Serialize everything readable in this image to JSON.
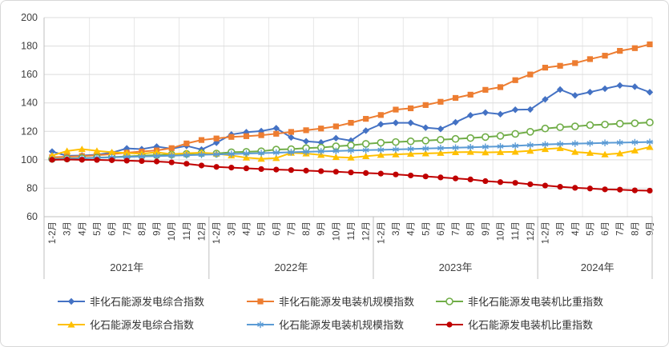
{
  "chart_data": {
    "type": "line",
    "categories": [
      "1-2月",
      "3月",
      "4月",
      "5月",
      "6月",
      "7月",
      "8月",
      "9月",
      "10月",
      "11月",
      "12月",
      "1-2月",
      "3月",
      "4月",
      "5月",
      "6月",
      "7月",
      "8月",
      "9月",
      "10月",
      "11月",
      "12月",
      "1-2月",
      "3月",
      "4月",
      "5月",
      "6月",
      "7月",
      "8月",
      "9月",
      "10月",
      "11月",
      "12月",
      "1-2月",
      "3月",
      "4月",
      "5月",
      "6月",
      "7月",
      "8月",
      "9月"
    ],
    "year_groups": [
      {
        "label": "2021年",
        "span": 11
      },
      {
        "label": "2022年",
        "span": 11
      },
      {
        "label": "2023年",
        "span": 11
      },
      {
        "label": "2024年",
        "span": 8
      }
    ],
    "y_axis": {
      "min": 60,
      "max": 200,
      "step": 20,
      "ticks": [
        60,
        80,
        100,
        120,
        140,
        160,
        180,
        200
      ]
    },
    "grid": true,
    "legend_position": "bottom",
    "series": [
      {
        "name": "非化石能源发电综合指数",
        "color": "#4472C4",
        "marker": "diamond",
        "values": [
          105.8,
          102.8,
          103.0,
          103.6,
          105.0,
          108.0,
          107.5,
          109.3,
          107.8,
          109.8,
          107.2,
          112.0,
          117.8,
          119.4,
          120.2,
          122.2,
          115.7,
          113.0,
          112.2,
          115.2,
          113.5,
          120.5,
          125.0,
          126.0,
          126.0,
          122.6,
          121.7,
          126.4,
          131.3,
          133.2,
          132.1,
          135.2,
          135.4,
          142.5,
          149.4,
          145.3,
          147.6,
          150.0,
          152.3,
          151.4,
          147.5
        ]
      },
      {
        "name": "非化石能源发电装机规模指数",
        "color": "#ED7D31",
        "marker": "square",
        "values": [
          101.8,
          102.2,
          102.6,
          103.2,
          104.0,
          105.0,
          105.8,
          106.6,
          108.2,
          111.5,
          113.9,
          115.0,
          116.1,
          116.6,
          117.3,
          118.3,
          119.6,
          120.8,
          122.0,
          123.5,
          126.0,
          128.8,
          131.5,
          135.3,
          136.2,
          138.5,
          140.8,
          143.5,
          145.8,
          149.2,
          151.1,
          156.0,
          160.0,
          164.8,
          166.1,
          168.0,
          170.8,
          173.2,
          176.6,
          178.5,
          181.2
        ]
      },
      {
        "name": "非化石能源发电装机比重指数",
        "color": "#70AD47",
        "marker": "circle-open",
        "values": [
          100.6,
          100.9,
          101.2,
          101.5,
          101.9,
          102.4,
          102.9,
          103.3,
          103.7,
          104.2,
          104.7,
          104.4,
          105.3,
          105.6,
          106.0,
          107.2,
          107.5,
          108.2,
          108.6,
          109.5,
          110.2,
          111.2,
          112.0,
          112.5,
          113.0,
          113.5,
          114.1,
          114.7,
          115.3,
          116.0,
          116.8,
          118.2,
          119.7,
          122.0,
          122.9,
          123.5,
          124.4,
          124.8,
          125.4,
          125.7,
          126.3
        ]
      },
      {
        "name": "化石能源发电综合指数",
        "color": "#FFC000",
        "marker": "triangle",
        "values": [
          103.0,
          106.2,
          107.5,
          106.3,
          105.3,
          104.8,
          104.3,
          105.3,
          104.0,
          104.6,
          105.0,
          104.3,
          103.0,
          101.5,
          100.7,
          101.2,
          104.9,
          104.4,
          103.4,
          101.9,
          101.5,
          102.5,
          103.4,
          103.8,
          104.2,
          104.5,
          104.8,
          105.3,
          105.5,
          105.2,
          105.4,
          105.6,
          106.3,
          107.5,
          108.2,
          105.5,
          104.8,
          103.8,
          104.5,
          106.5,
          109.0
        ]
      },
      {
        "name": "化石能源发电装机规模指数",
        "color": "#5B9BD5",
        "marker": "asterisk",
        "values": [
          100.4,
          100.7,
          101.0,
          101.4,
          101.7,
          102.0,
          102.3,
          102.6,
          102.9,
          103.2,
          103.5,
          103.8,
          104.1,
          104.4,
          104.7,
          105.0,
          105.3,
          105.6,
          105.9,
          106.2,
          106.5,
          106.8,
          107.0,
          107.3,
          107.6,
          107.9,
          108.2,
          108.5,
          108.8,
          109.1,
          109.4,
          109.8,
          110.3,
          110.8,
          111.1,
          111.4,
          111.6,
          111.9,
          112.1,
          112.3,
          112.5
        ]
      },
      {
        "name": "化石能源发电装机比重指数",
        "color": "#C00000",
        "marker": "circle",
        "values": [
          100.0,
          100.2,
          100.0,
          99.9,
          99.7,
          99.4,
          99.1,
          98.8,
          98.2,
          97.2,
          96.0,
          95.0,
          94.5,
          94.0,
          93.5,
          93.1,
          92.8,
          92.4,
          92.0,
          91.6,
          91.1,
          90.7,
          90.3,
          89.7,
          89.0,
          88.3,
          87.6,
          86.9,
          86.2,
          85.0,
          84.3,
          83.8,
          82.8,
          81.9,
          81.0,
          80.3,
          79.8,
          79.2,
          79.0,
          78.5,
          78.3
        ]
      }
    ],
    "style": {
      "grid_color": "#DCDCDC",
      "minor_grid_color": "#E7E7E7",
      "axis_color": "#BFBFBF",
      "text_color": "#404040"
    }
  }
}
